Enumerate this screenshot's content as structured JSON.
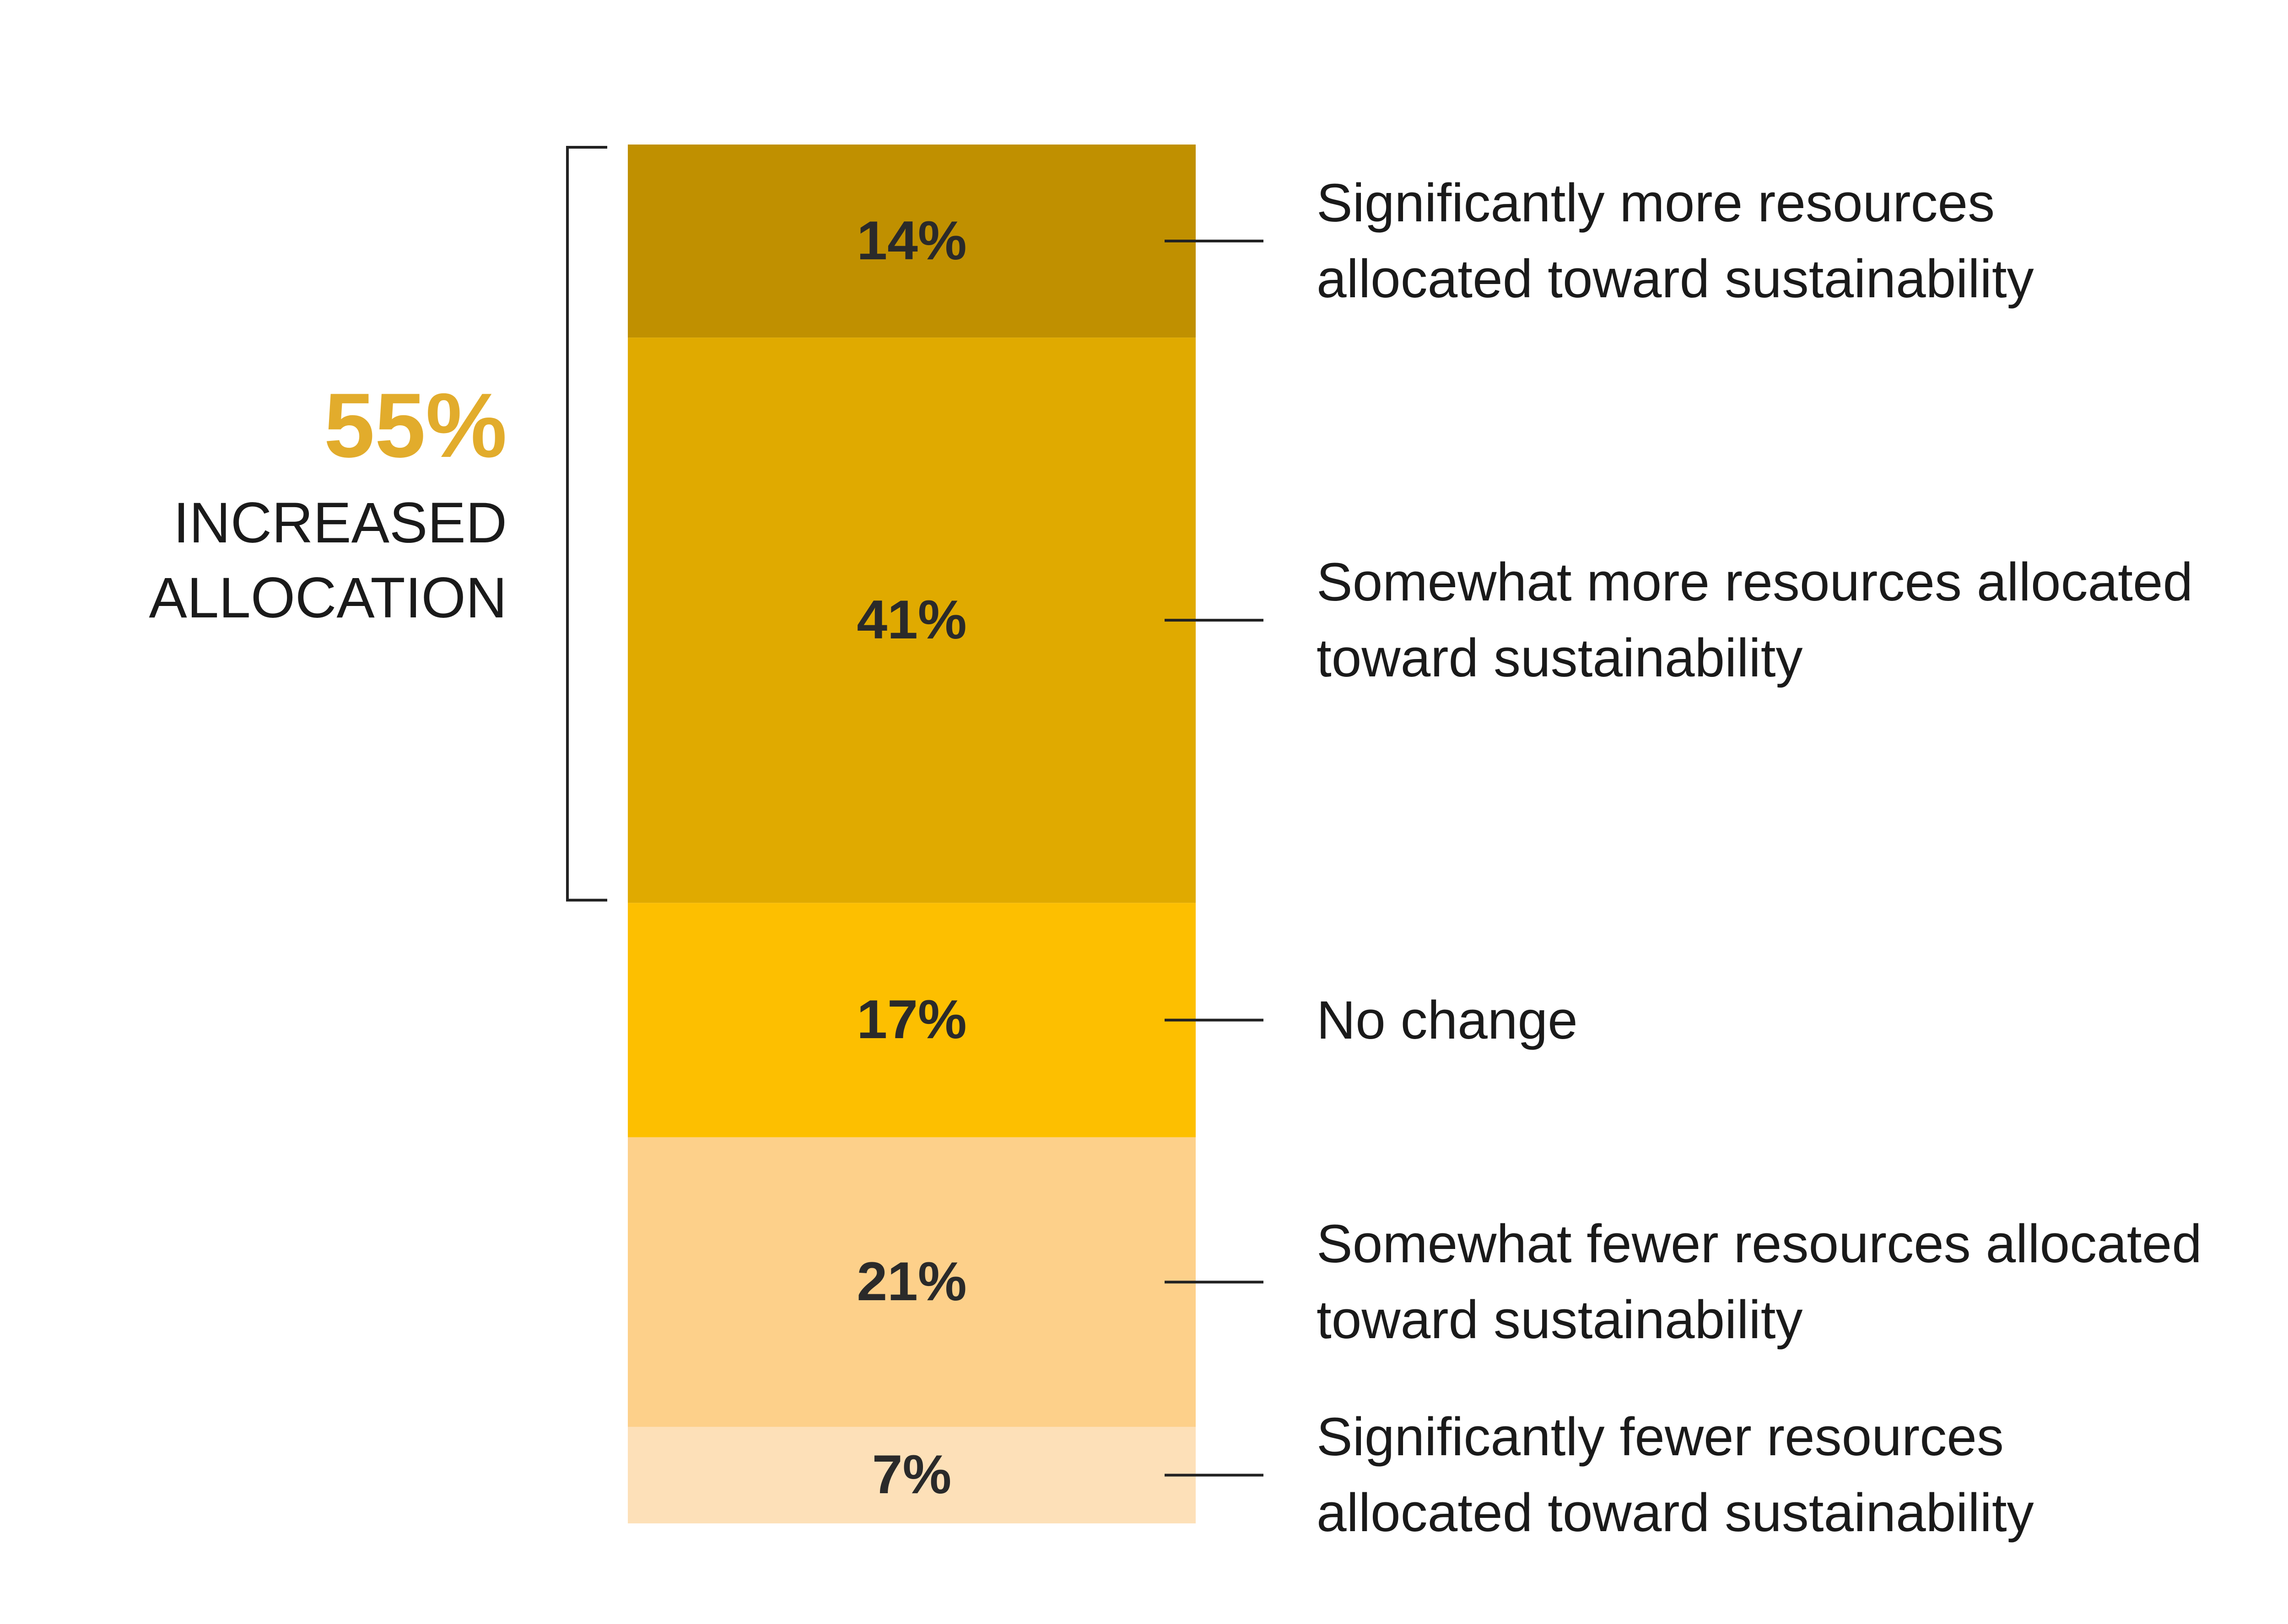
{
  "chart_data": {
    "type": "bar",
    "stacked": true,
    "ylim": [
      0,
      100
    ],
    "series": [
      {
        "name": "Significantly more resources allocated toward sustainability",
        "color": "#c09000",
        "values": [
          14
        ],
        "value_labels": [
          "14%"
        ]
      },
      {
        "name": "Somewhat more resources allocated toward sustainability",
        "color": "#e0aa00",
        "values": [
          41
        ],
        "value_labels": [
          "41%"
        ]
      },
      {
        "name": "No change",
        "color": "#fdbf00",
        "values": [
          17
        ],
        "value_labels": [
          "17%"
        ]
      },
      {
        "name": "Somewhat fewer resources allocated toward sustainability",
        "color": "#fdd08a",
        "values": [
          21
        ],
        "value_labels": [
          "21%"
        ]
      },
      {
        "name": "Significantly fewer resources allocated toward sustainability",
        "color": "#fde0b8",
        "values": [
          7
        ],
        "value_labels": [
          "7%"
        ]
      }
    ],
    "annotation": {
      "value": 55,
      "label": "55%",
      "text": "INCREASED ALLOCATION",
      "color": "#e2ac2c"
    }
  }
}
